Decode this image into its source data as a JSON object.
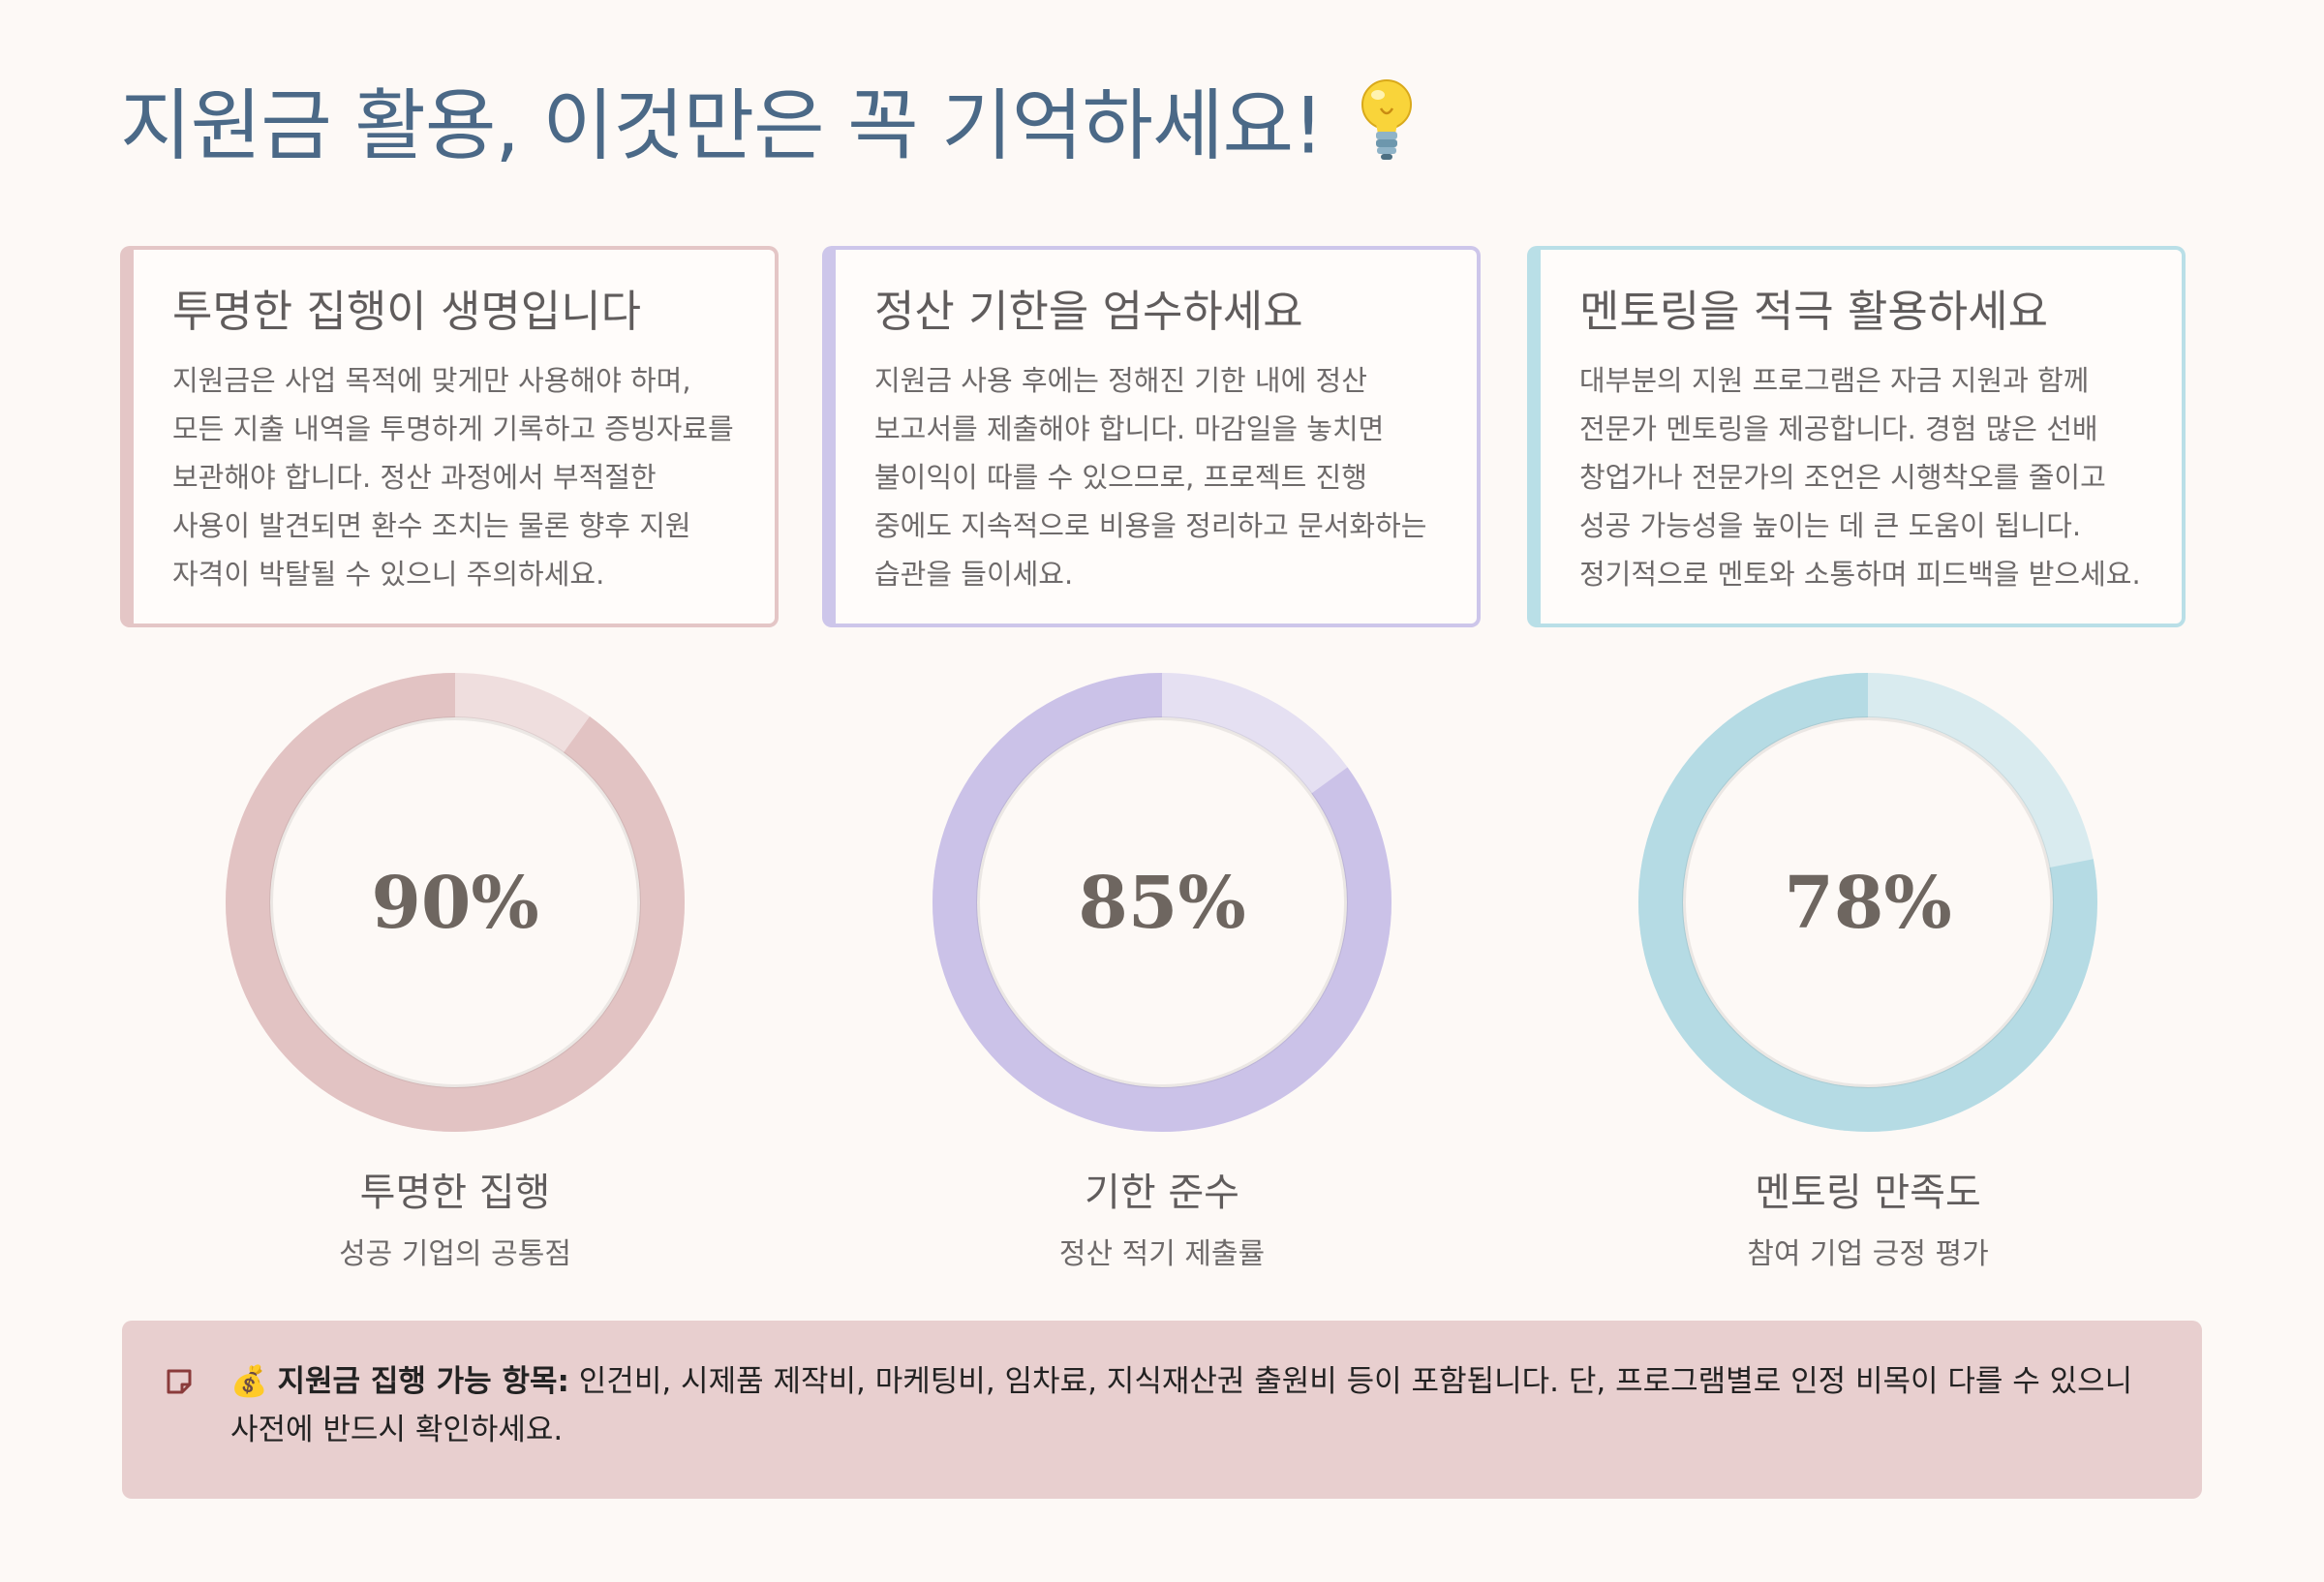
{
  "page": {
    "title": "지원금 활용, 이것만은 꼭 기억하세요!"
  },
  "cards": [
    {
      "heading": "투명한 집행이 생명입니다",
      "body": "지원금은 사업 목적에 맞게만 사용해야 하며, 모든 지출 내역을 투명하게 기록하고 증빙자료를 보관해야 합니다. 정산 과정에서 부적절한 사용이 발견되면 환수 조치는 물론 향후 지원 자격이 박탈될 수 있으니 주의하세요."
    },
    {
      "heading": "정산 기한을 엄수하세요",
      "body": "지원금 사용 후에는 정해진 기한 내에 정산 보고서를 제출해야 합니다. 마감일을 놓치면 불이익이 따를 수 있으므로, 프로젝트 진행 중에도 지속적으로 비용을 정리하고 문서화하는 습관을 들이세요."
    },
    {
      "heading": "멘토링을 적극 활용하세요",
      "body": "대부분의 지원 프로그램은 자금 지원과 함께 전문가 멘토링을 제공합니다. 경험 많은 선배 창업가나 전문가의 조언은 시행착오를 줄이고 성공 가능성을 높이는 데 큰 도움이 됩니다. 정기적으로 멘토와 소통하며 피드백을 받으세요."
    }
  ],
  "stats": [
    {
      "percent_label": "90%",
      "value": 90,
      "label": "투명한 집행",
      "sublabel": "성공 기업의 공통점",
      "color": "#e2c3c3",
      "track_color": "#efdede"
    },
    {
      "percent_label": "85%",
      "value": 85,
      "label": "기한 준수",
      "sublabel": "정산 적기 제출률",
      "color": "#cbc2e8",
      "track_color": "#e5e0f2"
    },
    {
      "percent_label": "78%",
      "value": 78,
      "label": "멘토링 만족도",
      "sublabel": "참여 기업 긍정 평가",
      "color": "#b5dbe4",
      "track_color": "#d9ebef"
    }
  ],
  "note": {
    "emoji": "💰",
    "strong": "지원금 집행 가능 항목:",
    "text": " 인건비, 시제품 제작비, 마케팅비, 임차료, 지식재산권 출원비 등이 포함됩니다. 단, 프로그램별로 인정 비목이 다를 수 있으니 사전에 반드시 확인하세요."
  },
  "icons": {
    "title_icon": "lightbulb-icon",
    "note_icon": "sticky-note-icon"
  }
}
